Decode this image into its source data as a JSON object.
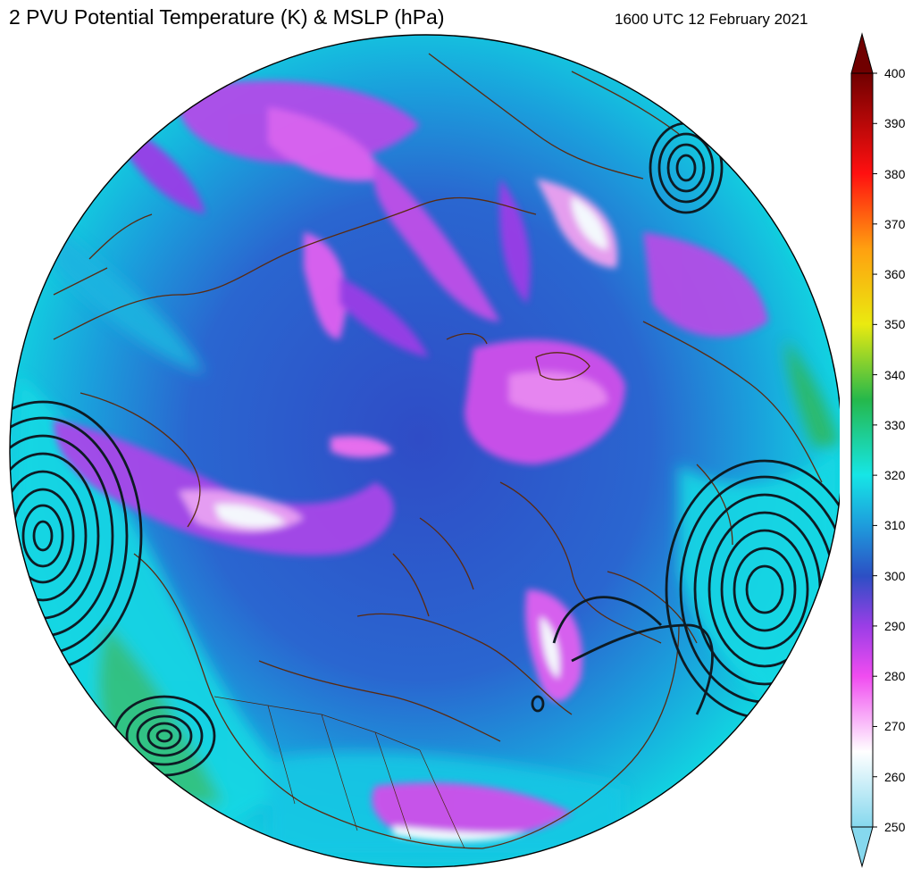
{
  "header": {
    "title": "2 PVU Potential Temperature (K) & MSLP (hPa)",
    "datetime": "1600 UTC 12 February 2021"
  },
  "map": {
    "projection": "north-polar-stereographic",
    "fields": [
      "2 PVU potential temperature (shaded)",
      "MSLP (contours)"
    ],
    "coastline_color": "#5a2a10",
    "contour_color": "#0d1b24"
  },
  "colorbar": {
    "min": 250,
    "max": 400,
    "ticks": [
      "400",
      "390",
      "380",
      "370",
      "360",
      "350",
      "340",
      "330",
      "320",
      "310",
      "300",
      "290",
      "280",
      "270",
      "260",
      "250"
    ],
    "colors": {
      "250": "#86d8ee",
      "265": "#ffffff",
      "280": "#f04cf0",
      "290": "#9a3ee6",
      "300": "#2c4fc4",
      "310": "#1e9cdc",
      "320": "#16e6e6",
      "335": "#25b84b",
      "350": "#eaea10",
      "365": "#ffa010",
      "380": "#ff1010",
      "400": "#700000"
    }
  }
}
